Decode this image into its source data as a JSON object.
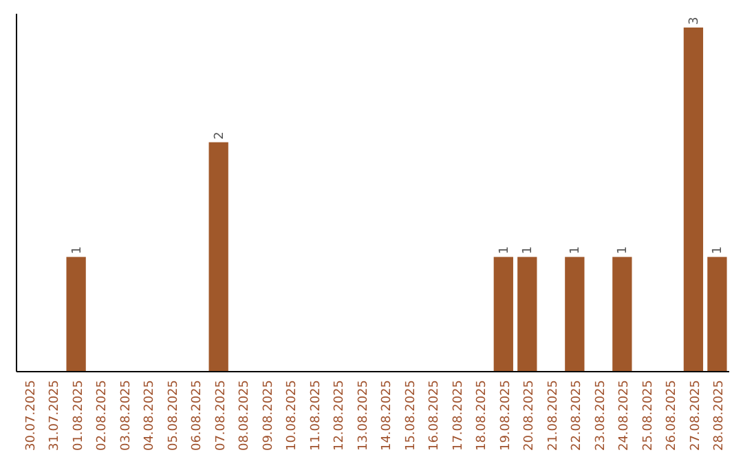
{
  "chart_data": {
    "type": "bar",
    "categories": [
      "30.07.2025",
      "31.07.2025",
      "01.08.2025",
      "02.08.2025",
      "03.08.2025",
      "04.08.2025",
      "05.08.2025",
      "06.08.2025",
      "07.08.2025",
      "08.08.2025",
      "09.08.2025",
      "10.08.2025",
      "11.08.2025",
      "12.08.2025",
      "13.08.2025",
      "14.08.2025",
      "15.08.2025",
      "16.08.2025",
      "17.08.2025",
      "18.08.2025",
      "19.08.2025",
      "20.08.2025",
      "21.08.2025",
      "22.08.2025",
      "23.08.2025",
      "24.08.2025",
      "25.08.2025",
      "26.08.2025",
      "27.08.2025",
      "28.08.2025"
    ],
    "values": [
      0,
      0,
      1,
      0,
      0,
      0,
      0,
      0,
      2,
      0,
      0,
      0,
      0,
      0,
      0,
      0,
      0,
      0,
      0,
      0,
      1,
      1,
      0,
      1,
      0,
      1,
      0,
      0,
      3,
      1
    ],
    "value_labels": [
      null,
      null,
      "1",
      null,
      null,
      null,
      null,
      null,
      "2",
      null,
      null,
      null,
      null,
      null,
      null,
      null,
      null,
      null,
      null,
      null,
      "1",
      "1",
      null,
      "1",
      null,
      "1",
      null,
      null,
      "3",
      "1"
    ],
    "color": "#a0582a",
    "tick_labels": "x"
  }
}
